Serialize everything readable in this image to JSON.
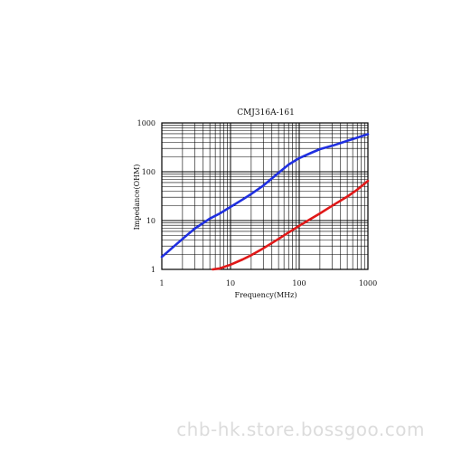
{
  "chart_data": {
    "type": "line",
    "title": "CMJ316A-161",
    "xlabel": "Frequency(MHz)",
    "ylabel": "Impedance(OHM)",
    "xscale": "log",
    "yscale": "log",
    "xlim": [
      1,
      1000
    ],
    "ylim": [
      1,
      1000
    ],
    "xticks": [
      "1",
      "10",
      "100",
      "1000"
    ],
    "yticks": [
      "1",
      "10",
      "100",
      "1000"
    ],
    "grid": true,
    "series": [
      {
        "color": "#1f2fe0",
        "x": [
          1,
          2,
          3,
          5,
          7,
          10,
          15,
          20,
          30,
          50,
          70,
          100,
          150,
          200,
          300,
          500,
          700,
          1000
        ],
        "y": [
          1.8,
          4.2,
          6.8,
          11,
          14,
          19,
          27,
          35,
          52,
          95,
          140,
          190,
          245,
          290,
          340,
          430,
          500,
          590
        ]
      },
      {
        "color": "#e01818",
        "x": [
          5.5,
          7,
          10,
          15,
          20,
          30,
          50,
          70,
          100,
          150,
          200,
          300,
          500,
          700,
          1000
        ],
        "y": [
          1.0,
          1.05,
          1.25,
          1.6,
          1.95,
          2.7,
          4.2,
          5.7,
          7.8,
          11,
          14,
          20,
          31,
          43,
          65
        ]
      }
    ]
  },
  "watermark": "chb-hk.store.bossgoo.com"
}
